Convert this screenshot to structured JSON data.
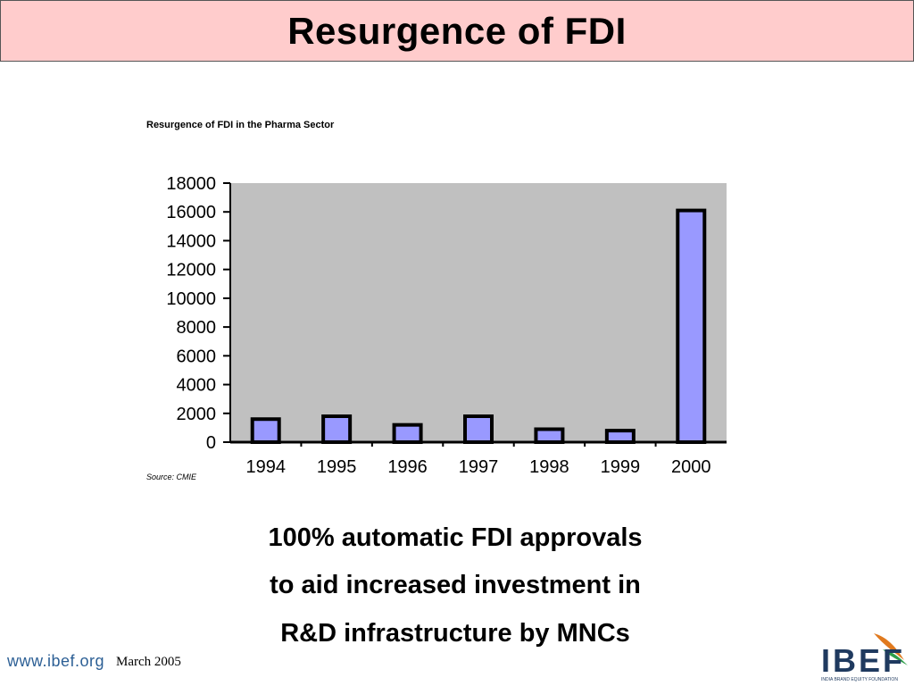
{
  "slide": {
    "title": "Resurgence of FDI",
    "bullets": [
      "100% automatic FDI approvals",
      "to aid increased investment in",
      "R&D infrastructure by MNCs"
    ]
  },
  "footer": {
    "url": "www.ibef.org",
    "date": "March  2005",
    "logo_text": "IBEF",
    "logo_subtext": "INDIA BRAND EQUITY FOUNDATION"
  },
  "colors": {
    "title_bg": "#ffcccc",
    "plot_bg": "#c0c0c0",
    "bar_fill": "#9999ff",
    "bar_stroke": "#000000"
  },
  "chart_data": {
    "type": "bar",
    "title": "Resurgence of FDI in the Pharma Sector",
    "source": "Source: CMIE",
    "categories": [
      "1994",
      "1995",
      "1996",
      "1997",
      "1998",
      "1999",
      "2000"
    ],
    "values": [
      1600,
      1800,
      1200,
      1800,
      900,
      800,
      16100
    ],
    "ylim": [
      0,
      18000
    ],
    "yticks": [
      "18000",
      "16000",
      "14000",
      "12000",
      "10000",
      "8000",
      "6000",
      "4000",
      "2000",
      "0"
    ],
    "xlabel": "",
    "ylabel": "",
    "grid": false,
    "legend": "none"
  }
}
